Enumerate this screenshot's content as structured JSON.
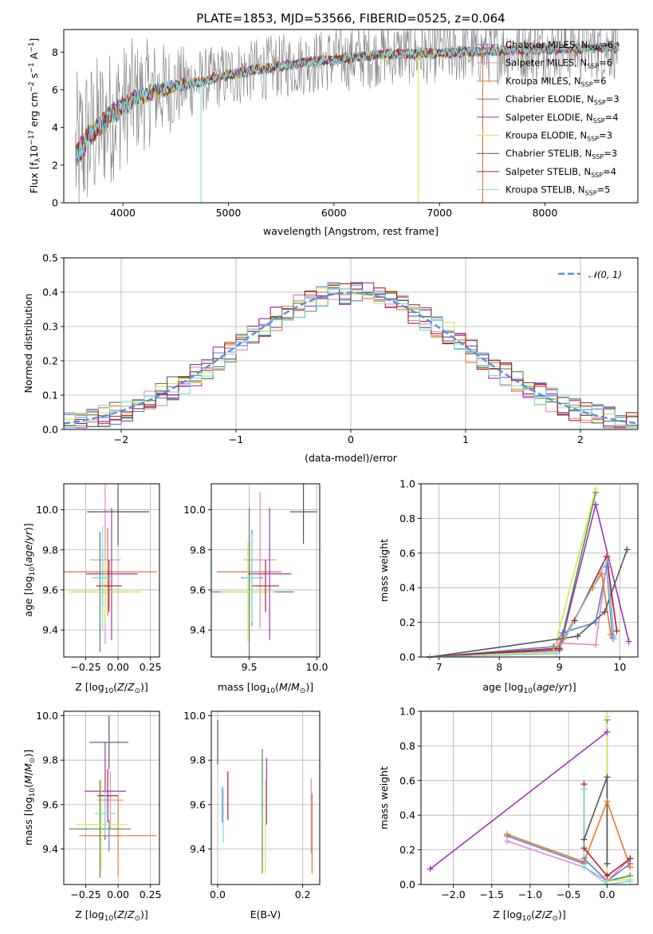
{
  "chart_data": [
    {
      "id": "spectrum",
      "type": "line",
      "title": "PLATE=1853, MJD=53566, FIBERID=0525, z=0.064",
      "xlabel": "wavelength [Angstrom, rest frame]",
      "ylabel": "Flux [f_λ10^-17 erg cm^-2 s^-1 A^-1]",
      "xlim": [
        3440,
        8880
      ],
      "ylim": [
        0,
        9.2
      ],
      "xticks": [
        4000,
        5000,
        6000,
        7000,
        8000
      ],
      "yticks": [
        0,
        2,
        4,
        6,
        8
      ],
      "data_range": [
        3550,
        8700
      ],
      "continuum_x": [
        3550,
        3650,
        3800,
        3950,
        4100,
        4300,
        4500,
        4800,
        5000,
        5300,
        5600,
        6000,
        6500,
        7000,
        7500,
        8000,
        8400,
        8700
      ],
      "continuum_y": [
        2.4,
        3.3,
        4.2,
        4.9,
        5.5,
        5.9,
        6.2,
        6.5,
        6.8,
        7.1,
        7.35,
        7.6,
        7.9,
        7.95,
        8.05,
        8.15,
        8.2,
        8.25
      ],
      "legend": [
        {
          "name": "Chabrier MILES, N_SSP=6",
          "label": "Chabrier MILES, N",
          "sub": "SSP",
          "tail": "=6",
          "color": "#5c7fd6"
        },
        {
          "name": "Salpeter MILES, N_SSP=6",
          "label": "Salpeter MILES, N",
          "sub": "SSP",
          "tail": "=6",
          "color": "#e687c4"
        },
        {
          "name": "Kroupa MILES, N_SSP=6",
          "label": "Kroupa MILES, N",
          "sub": "SSP",
          "tail": "=6",
          "color": "#e3782e"
        },
        {
          "name": "Chabrier ELODIE, N_SSP=3",
          "label": "Chabrier ELODIE, N",
          "sub": "SSP",
          "tail": "=3",
          "color": "#4f8a57"
        },
        {
          "name": "Salpeter ELODIE, N_SSP=4",
          "label": "Salpeter ELODIE, N",
          "sub": "SSP",
          "tail": "=4",
          "color": "#9a35b4"
        },
        {
          "name": "Kroupa ELODIE, N_SSP=3",
          "label": "Kroupa ELODIE, N",
          "sub": "SSP",
          "tail": "=3",
          "color": "#d7e84e"
        },
        {
          "name": "Chabrier STELIB, N_SSP=3",
          "label": "Chabrier STELIB, N",
          "sub": "SSP",
          "tail": "=3",
          "color": "#555555"
        },
        {
          "name": "Salpeter STELIB, N_SSP=4",
          "label": "Salpeter STELIB, N",
          "sub": "SSP",
          "tail": "=4",
          "color": "#b0202c"
        },
        {
          "name": "Kroupa STELIB, N_SSP=5",
          "label": "Kroupa STELIB, N",
          "sub": "SSP",
          "tail": "=5",
          "color": "#7fdbe0"
        }
      ]
    },
    {
      "id": "residuals",
      "type": "histogram",
      "xlabel": "(data-model)/error",
      "ylabel": "Normed distribution",
      "xlim": [
        -2.5,
        2.5
      ],
      "ylim": [
        0,
        0.5
      ],
      "xticks": [
        -2,
        -1,
        0,
        1,
        2
      ],
      "yticks": [
        0.0,
        0.1,
        0.2,
        0.3,
        0.4,
        0.5
      ],
      "bin_width": 0.1,
      "reference": {
        "label": "𝒩(0, 1)",
        "mean": 0,
        "sigma": 1
      }
    },
    {
      "id": "age-vs-Z",
      "type": "errorbar",
      "xlabel": "Z [log10(Z/Z☉)]",
      "ylabel": "age [log10(age/yr)]",
      "xlim": [
        -0.42,
        0.32
      ],
      "ylim": [
        9.265,
        10.13
      ],
      "xticks": [
        -0.25,
        0.0,
        0.25
      ],
      "yticks": [
        9.4,
        9.6,
        9.8,
        10.0
      ],
      "points": [
        {
          "x": -0.12,
          "y": 9.66,
          "xerr": 0.08,
          "yerr": 0.14,
          "color": "#5c7fd6"
        },
        {
          "x": -0.1,
          "y": 9.75,
          "xerr": 0.12,
          "yerr": 0.42,
          "color": "#e687c4"
        },
        {
          "x": -0.08,
          "y": 9.69,
          "xerr": 0.38,
          "yerr": 0.22,
          "color": "#e3782e"
        },
        {
          "x": -0.14,
          "y": 9.59,
          "xerr": 0.22,
          "yerr": 0.3,
          "color": "#4f8a57"
        },
        {
          "x": -0.05,
          "y": 9.68,
          "xerr": 0.2,
          "yerr": 0.33,
          "color": "#9a35b4"
        },
        {
          "x": -0.1,
          "y": 9.59,
          "xerr": 0.28,
          "yerr": 0.16,
          "color": "#d7e84e"
        },
        {
          "x": 0.0,
          "y": 9.99,
          "xerr": 0.24,
          "yerr": 0.17,
          "color": "#555555"
        },
        {
          "x": -0.07,
          "y": 9.62,
          "xerr": 0.1,
          "yerr": 0.13,
          "color": "#b0202c"
        },
        {
          "x": -0.12,
          "y": 9.66,
          "xerr": 0.08,
          "yerr": 0.26,
          "color": "#7fdbe0"
        }
      ]
    },
    {
      "id": "age-vs-mass",
      "type": "errorbar",
      "xlabel": "mass [log10(M/M☉)]",
      "ylabel": "",
      "xlim": [
        9.22,
        10.02
      ],
      "ylim": [
        9.265,
        10.13
      ],
      "xticks": [
        9.5,
        10.0
      ],
      "yticks": [
        9.4,
        9.6,
        9.8,
        10.0
      ],
      "points": [
        {
          "x": 9.52,
          "y": 9.66,
          "xerr": 0.08,
          "yerr": 0.24,
          "color": "#5c7fd6"
        },
        {
          "x": 9.58,
          "y": 9.75,
          "xerr": 0.12,
          "yerr": 0.34,
          "color": "#e687c4"
        },
        {
          "x": 9.5,
          "y": 9.69,
          "xerr": 0.24,
          "yerr": 0.19,
          "color": "#e3782e"
        },
        {
          "x": 9.5,
          "y": 9.59,
          "xerr": 0.33,
          "yerr": 0.42,
          "color": "#4f8a57"
        },
        {
          "x": 9.65,
          "y": 9.68,
          "xerr": 0.16,
          "yerr": 0.33,
          "color": "#9a35b4"
        },
        {
          "x": 9.49,
          "y": 9.59,
          "xerr": 0.2,
          "yerr": 0.25,
          "color": "#d7e84e"
        },
        {
          "x": 9.9,
          "y": 9.99,
          "xerr": 0.1,
          "yerr": 0.16,
          "color": "#555555"
        },
        {
          "x": 9.62,
          "y": 9.62,
          "xerr": 0.1,
          "yerr": 0.13,
          "color": "#b0202c"
        },
        {
          "x": 9.52,
          "y": 9.66,
          "xerr": 0.06,
          "yerr": 0.22,
          "color": "#7fdbe0"
        }
      ]
    },
    {
      "id": "massweight-vs-age",
      "type": "line",
      "xlabel": "age [log10(age/yr)]",
      "ylabel": "mass weight",
      "xlim": [
        6.7,
        10.3
      ],
      "ylim": [
        0,
        1.0
      ],
      "xticks": [
        7,
        8,
        9,
        10
      ],
      "yticks": [
        0.0,
        0.2,
        0.4,
        0.6,
        0.8,
        1.0
      ],
      "series": [
        {
          "color": "#5c7fd6",
          "x": [
            6.85,
            8.9,
            9.05,
            9.6,
            9.78,
            9.88
          ],
          "y": [
            0.0,
            0.06,
            0.14,
            0.2,
            0.52,
            0.11
          ]
        },
        {
          "color": "#e687c4",
          "x": [
            6.85,
            8.9,
            9.0,
            9.6,
            9.8,
            9.9
          ],
          "y": [
            0.0,
            0.03,
            0.08,
            0.07,
            0.58,
            0.12
          ]
        },
        {
          "color": "#e3782e",
          "x": [
            6.85,
            8.9,
            9.05,
            9.55,
            9.7,
            9.85
          ],
          "y": [
            0.0,
            0.03,
            0.1,
            0.4,
            0.48,
            0.13
          ]
        },
        {
          "color": "#4f8a57",
          "x": [
            6.85,
            9.0,
            9.6
          ],
          "y": [
            0.0,
            0.05,
            0.95
          ]
        },
        {
          "color": "#9a35b4",
          "x": [
            6.85,
            9.0,
            9.6,
            10.15
          ],
          "y": [
            0.0,
            0.04,
            0.88,
            0.09
          ]
        },
        {
          "color": "#d7e84e",
          "x": [
            6.85,
            8.9,
            9.6
          ],
          "y": [
            0.0,
            0.03,
            0.97
          ]
        },
        {
          "color": "#555555",
          "x": [
            6.85,
            9.3,
            9.75,
            10.12
          ],
          "y": [
            0.0,
            0.12,
            0.26,
            0.62
          ]
        },
        {
          "color": "#b0202c",
          "x": [
            6.85,
            9.0,
            9.25,
            9.78,
            9.95
          ],
          "y": [
            0.0,
            0.05,
            0.21,
            0.58,
            0.15
          ]
        },
        {
          "color": "#7fdbe0",
          "x": [
            6.85,
            8.95,
            9.78,
            9.9
          ],
          "y": [
            0.0,
            0.02,
            0.55,
            0.1
          ]
        }
      ]
    },
    {
      "id": "mass-vs-Z",
      "type": "errorbar",
      "xlabel": "Z [log10(Z/Z☉)]",
      "ylabel": "mass [log10(M/M☉)]",
      "xlim": [
        -0.42,
        0.32
      ],
      "ylim": [
        9.24,
        10.02
      ],
      "xticks": [
        -0.25,
        0.0,
        0.25
      ],
      "yticks": [
        9.4,
        9.6,
        9.8,
        10.0
      ],
      "points": [
        {
          "x": -0.07,
          "y": 9.46,
          "xerr": 0.1,
          "yerr": 0.07,
          "color": "#5c7fd6"
        },
        {
          "x": -0.06,
          "y": 9.62,
          "xerr": 0.1,
          "yerr": 0.13,
          "color": "#e687c4"
        },
        {
          "x": 0.0,
          "y": 9.46,
          "xerr": 0.3,
          "yerr": 0.18,
          "color": "#e3782e"
        },
        {
          "x": -0.14,
          "y": 9.49,
          "xerr": 0.24,
          "yerr": 0.22,
          "color": "#4f8a57"
        },
        {
          "x": -0.1,
          "y": 9.66,
          "xerr": 0.16,
          "yerr": 0.22,
          "color": "#9a35b4"
        },
        {
          "x": -0.13,
          "y": 9.51,
          "xerr": 0.2,
          "yerr": 0.21,
          "color": "#d7e84e"
        },
        {
          "x": -0.07,
          "y": 9.88,
          "xerr": 0.15,
          "yerr": 0.12,
          "color": "#555555"
        },
        {
          "x": -0.08,
          "y": 9.64,
          "xerr": 0.08,
          "yerr": 0.12,
          "color": "#b0202c"
        },
        {
          "x": -0.1,
          "y": 9.56,
          "xerr": 0.08,
          "yerr": 0.1,
          "color": "#7fdbe0"
        }
      ]
    },
    {
      "id": "mass-vs-EBV",
      "type": "errorbar",
      "xlabel": "E(B-V)",
      "ylabel": "",
      "xlim": [
        -0.015,
        0.24
      ],
      "ylim": [
        9.24,
        10.02
      ],
      "xticks": [
        0.0,
        0.2
      ],
      "yticks": [
        9.4,
        9.6,
        9.8,
        10.0
      ],
      "points": [
        {
          "x": 0.011,
          "y": 9.6,
          "yerr": 0.08,
          "color": "#5c7fd6"
        },
        {
          "x": 0.22,
          "y": 9.55,
          "yerr": 0.17,
          "color": "#e687c4"
        },
        {
          "x": 0.222,
          "y": 9.47,
          "yerr": 0.18,
          "color": "#e3782e"
        },
        {
          "x": 0.105,
          "y": 9.57,
          "yerr": 0.28,
          "color": "#4f8a57"
        },
        {
          "x": 0.115,
          "y": 9.66,
          "yerr": 0.15,
          "color": "#9a35b4"
        },
        {
          "x": 0.112,
          "y": 9.5,
          "yerr": 0.21,
          "color": "#d7e84e"
        },
        {
          "x": 0.0,
          "y": 9.88,
          "yerr": 0.1,
          "color": "#555555"
        },
        {
          "x": 0.024,
          "y": 9.64,
          "yerr": 0.11,
          "color": "#b0202c"
        },
        {
          "x": 0.013,
          "y": 9.55,
          "yerr": 0.12,
          "color": "#7fdbe0"
        }
      ]
    },
    {
      "id": "massweight-vs-Z",
      "type": "line",
      "xlabel": "Z [log10(Z/Z☉)]",
      "ylabel": "mass weight",
      "xlim": [
        -2.42,
        0.4
      ],
      "ylim": [
        0,
        1.0
      ],
      "xticks": [
        -2.0,
        -1.5,
        -1.0,
        -0.5,
        0.0
      ],
      "yticks": [
        0.0,
        0.2,
        0.4,
        0.6,
        0.8,
        1.0
      ],
      "series": [
        {
          "color": "#5c7fd6",
          "x": [
            -1.3,
            -0.3,
            -0.3,
            0.0,
            0.3
          ],
          "y": [
            0.28,
            0.12,
            0.15,
            0.02,
            0.12
          ]
        },
        {
          "color": "#e687c4",
          "x": [
            -1.3,
            -0.3,
            0.0,
            0.3
          ],
          "y": [
            0.25,
            0.1,
            0.02,
            0.15
          ]
        },
        {
          "color": "#e3782e",
          "x": [
            -1.3,
            -0.3,
            0.0,
            0.3
          ],
          "y": [
            0.29,
            0.13,
            0.48,
            0.1
          ]
        },
        {
          "color": "#4f8a57",
          "x": [
            0.0,
            0.0,
            0.3
          ],
          "y": [
            0.95,
            0.02,
            0.05
          ]
        },
        {
          "color": "#9a35b4",
          "x": [
            -2.3,
            0.0
          ],
          "y": [
            0.09,
            0.88
          ]
        },
        {
          "color": "#d7e84e",
          "x": [
            0.0,
            0.0,
            0.3
          ],
          "y": [
            0.97,
            0.02,
            0.03
          ]
        },
        {
          "color": "#555555",
          "x": [
            -0.3,
            0.0,
            0.0
          ],
          "y": [
            0.26,
            0.62,
            0.12
          ]
        },
        {
          "color": "#b0202c",
          "x": [
            -0.3,
            -0.3,
            0.0,
            0.3
          ],
          "y": [
            0.58,
            0.21,
            0.05,
            0.15
          ]
        },
        {
          "color": "#7fdbe0",
          "x": [
            -0.3,
            -0.3,
            0.0,
            0.3
          ],
          "y": [
            0.55,
            0.1,
            0.0,
            0.02
          ]
        }
      ]
    }
  ]
}
